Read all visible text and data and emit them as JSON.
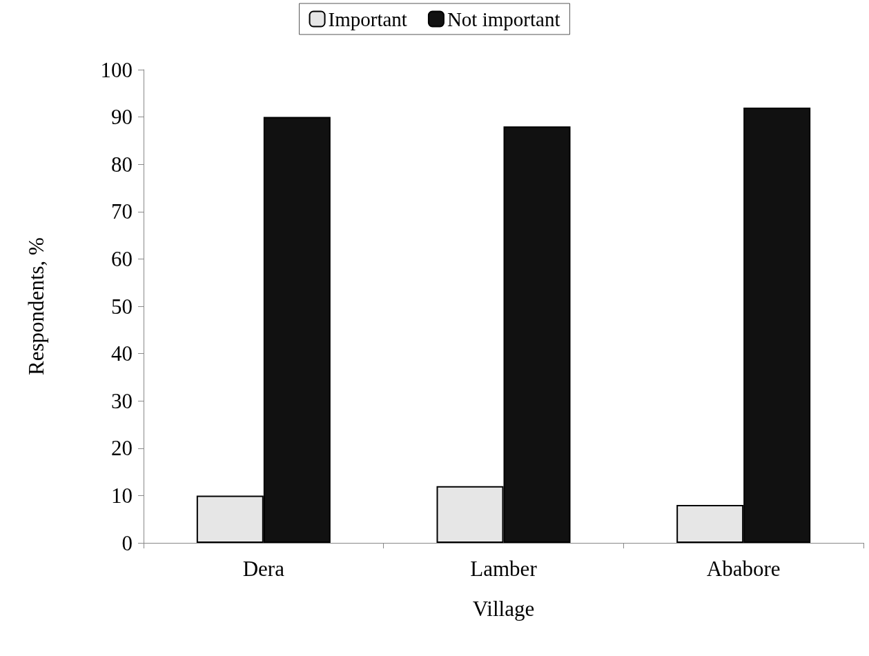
{
  "chart_data": {
    "type": "bar",
    "xlabel": "Village",
    "ylabel": "Respondents, %",
    "categories": [
      "Dera",
      "Lamber",
      "Ababore"
    ],
    "series": [
      {
        "name": "Important",
        "color": "#e6e6e6",
        "values": [
          10,
          12,
          8
        ]
      },
      {
        "name": "Not important",
        "color": "#111111",
        "values": [
          90,
          88,
          92
        ]
      }
    ],
    "ylim": [
      0,
      100
    ],
    "yticks": [
      0,
      10,
      20,
      30,
      40,
      50,
      60,
      70,
      80,
      90,
      100
    ],
    "grid": false,
    "legend": "top"
  }
}
